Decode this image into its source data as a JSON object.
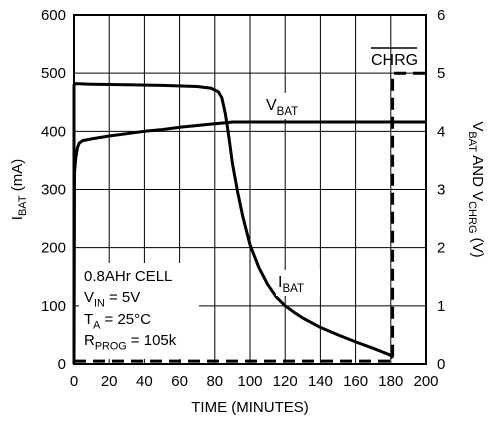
{
  "chart_data": {
    "type": "line",
    "xlabel": "TIME (MINUTES)",
    "ylabel_left": {
      "main": "I",
      "sub": "BAT",
      "rest": " (mA)"
    },
    "ylabel_right": {
      "v1": "V",
      "s1": "BAT",
      "mid": " AND V",
      "s2": "CHRG",
      "end": " (V)"
    },
    "xlim": [
      0,
      200
    ],
    "ylim_left": [
      0,
      600
    ],
    "ylim_right": [
      0,
      6
    ],
    "grid": true,
    "x_ticks": [
      "0",
      "20",
      "40",
      "60",
      "80",
      "100",
      "120",
      "140",
      "160",
      "180",
      "200"
    ],
    "y_ticks_left": [
      "0",
      "100",
      "200",
      "300",
      "400",
      "500",
      "600"
    ],
    "y_ticks_right": [
      "0",
      "1",
      "2",
      "3",
      "4",
      "5",
      "6"
    ],
    "series": [
      {
        "name": "I_BAT",
        "label": {
          "main": "I",
          "sub": "BAT"
        },
        "axis": "left",
        "style": "solid",
        "x": [
          0,
          0,
          0.5,
          10,
          30,
          50,
          70,
          78,
          82,
          84,
          86,
          88,
          90,
          93,
          96,
          100,
          105,
          110,
          115,
          120,
          125,
          130,
          140,
          150,
          160,
          170,
          180,
          181
        ],
        "y": [
          0,
          480,
          482,
          481,
          480,
          479,
          477,
          474,
          468,
          458,
          430,
          390,
          345,
          295,
          252,
          205,
          166,
          137,
          115,
          100,
          89,
          79,
          63,
          50,
          38,
          27,
          15,
          10
        ]
      },
      {
        "name": "V_BAT",
        "label": {
          "main": "V",
          "sub": "BAT"
        },
        "axis": "right",
        "style": "solid",
        "x": [
          0,
          0.3,
          1,
          2,
          3,
          5,
          10,
          20,
          30,
          40,
          50,
          60,
          70,
          80,
          87,
          90,
          100,
          150,
          200
        ],
        "y": [
          0,
          3.3,
          3.55,
          3.72,
          3.8,
          3.84,
          3.87,
          3.92,
          3.96,
          4.0,
          4.03,
          4.07,
          4.1,
          4.13,
          4.15,
          4.16,
          4.16,
          4.16,
          4.16
        ]
      },
      {
        "name": "CHRG",
        "label": {
          "main": "CHRG",
          "overline": true
        },
        "axis": "right",
        "style": "dashed",
        "x": [
          0,
          181,
          181,
          200
        ],
        "y": [
          0.05,
          0.05,
          5.0,
          5.0
        ]
      }
    ],
    "annotations": [
      {
        "main": "0.8AHr CELL"
      },
      {
        "main": "V",
        "sub": "IN",
        "rest": " = 5V"
      },
      {
        "main": "T",
        "sub": "A",
        "rest": " = 25°C"
      },
      {
        "main": "R",
        "sub": "PROG",
        "rest": " = 105k"
      }
    ]
  },
  "colors": {
    "line": "#000000",
    "grid": "#000000",
    "background": "#ffffff"
  }
}
